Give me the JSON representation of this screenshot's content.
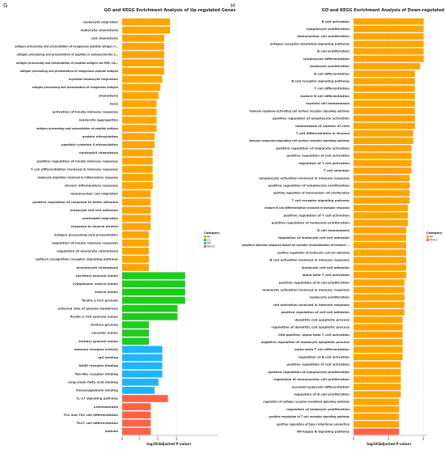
{
  "panels": [
    {
      "letter": "G"
    },
    {
      "letter": "H"
    }
  ],
  "chart_data": [
    {
      "type": "bar",
      "orientation": "horizontal",
      "title": "GO and KEGG Enrichment Analysis of Up-regulated Genes",
      "xlabel": "-log10(Adjusted P-value)",
      "xlim": [
        0,
        5
      ],
      "xticks": [
        "0",
        "1",
        "2",
        "3"
      ],
      "legend": {
        "title": "Category",
        "position": "right",
        "entries": [
          "BP",
          "CC",
          "MF",
          "KEGG"
        ]
      },
      "colors": {
        "BP": "#FFA500",
        "CC": "#1ECC1E",
        "MF": "#1EB4FF",
        "KEGG": "#FF6347"
      },
      "categories": [
        "leukocyte migration",
        "leukocyte chemotaxis",
        "cell chemotaxis",
        "antigen processing and presentation of exogenous peptide antigen via MHC class II",
        "antigen processing and presentation of peptide or polysaccharide antigen via MHC class II",
        "antigen processing and presentation of peptide antigen via MHC class II",
        "antigen processing and presentation of exogenous peptide antigen",
        "myeloid leukocyte migration",
        "antigen processing and presentation of exogenous antigen",
        "chemotaxis",
        "taxis",
        "activation of innate immune response",
        "leukocyte aggregation",
        "antigen processing and presentation of peptide antigen",
        "protein nitrosylation",
        "peptidyl-cysteine S-nitrosylation",
        "neutrophil chemotaxis",
        "positive regulation of innate immune response",
        "T cell differentiation involved in immune response",
        "leukocyte migration involved in inflammatory response",
        "chronic inflammatory response",
        "mononuclear cell migration",
        "positive regulation of response to biotic stimulus",
        "leukocyte cell-cell adhesion",
        "neutrophil migration",
        "response to muscle stretch",
        "antigen processing and presentation",
        "regulation of innate immune response",
        "regulation of monocyte chemotaxis",
        "pattern recognition receptor signaling pathway",
        "granulocyte chemotaxis",
        "secretory granule lumen",
        "cytoplasmic vesicle lumen",
        "vesicle lumen",
        "ficolin-1-rich granule",
        "external side of plasma membrane",
        "ficolin-1-rich granule lumen",
        "tertiary granule",
        "vacuolar lumen",
        "tertiary granule lumen",
        "immune receptor activity",
        "IgG binding",
        "RAGE receptor binding",
        "Toll-like receptor binding",
        "long-chain fatty acid binding",
        "immunoglobulin binding",
        "IL-17 signaling pathway",
        "Leishmaniasis",
        "Th1 and Th2 cell differentiation",
        "Th17 cell differentiation",
        "Asthma"
      ],
      "groups": [
        "BP",
        "BP",
        "BP",
        "BP",
        "BP",
        "BP",
        "BP",
        "BP",
        "BP",
        "BP",
        "BP",
        "BP",
        "BP",
        "BP",
        "BP",
        "BP",
        "BP",
        "BP",
        "BP",
        "BP",
        "BP",
        "BP",
        "BP",
        "BP",
        "BP",
        "BP",
        "BP",
        "BP",
        "BP",
        "BP",
        "BP",
        "CC",
        "CC",
        "CC",
        "CC",
        "CC",
        "CC",
        "CC",
        "CC",
        "CC",
        "MF",
        "MF",
        "MF",
        "MF",
        "MF",
        "MF",
        "KEGG",
        "KEGG",
        "KEGG",
        "KEGG",
        "KEGG"
      ],
      "values": [
        2.5,
        2.5,
        2.2,
        2.2,
        2.2,
        2.2,
        2.2,
        2.1,
        2.0,
        1.9,
        1.8,
        1.8,
        1.8,
        1.8,
        1.7,
        1.7,
        1.6,
        1.6,
        1.6,
        1.6,
        1.6,
        1.5,
        1.5,
        1.5,
        1.5,
        1.5,
        1.4,
        1.4,
        1.4,
        1.4,
        1.4,
        3.3,
        3.3,
        3.3,
        3.3,
        2.9,
        2.9,
        1.4,
        1.4,
        1.4,
        2.1,
        2.1,
        2.1,
        2.1,
        1.9,
        1.7,
        2.4,
        1.5,
        1.5,
        1.5,
        1.5
      ]
    },
    {
      "type": "bar",
      "orientation": "horizontal",
      "title": "GO and KEGG Enrichment Analysis of Down-regulated Genes",
      "xlabel": "-log10(Adjusted P-value)",
      "xlim": [
        0,
        4.2
      ],
      "xticks": [
        "0",
        "2",
        "4"
      ],
      "legend": {
        "title": "Category",
        "position": "right",
        "entries": [
          "BP",
          "KEGG"
        ]
      },
      "colors": {
        "BP": "#FFA500",
        "KEGG": "#FF6347"
      },
      "categories": [
        "B cell activation",
        "lymphocyte proliferation",
        "mononuclear cell proliferation",
        "antigen receptor-mediated signaling pathway",
        "B cell proliferation",
        "lymphocyte differentiation",
        "leukocyte proliferation",
        "B cell differentiation",
        "B cell receptor signaling pathway",
        "T cell differentiation",
        "mature B cell differentiation",
        "myeloid cell homeostasis",
        "immune response-activating cell surface receptor signaling pathway",
        "positive regulation of lymphocyte activation",
        "homeostasis of number of cells",
        "T cell differentiation in thymus",
        "immune response-regulating cell surface receptor signaling pathway",
        "positive regulation of leukocyte activation",
        "positive regulation of cell activation",
        "regulation of T cell activation",
        "T cell selection",
        "lymphocyte activation involved in immune response",
        "positive regulation of lymphocyte proliferation",
        "positive regulation of mononuclear cell proliferation",
        "T cell receptor signaling pathway",
        "mature B cell differentiation involved in immune response",
        "positive regulation of T cell activation",
        "positive regulation of leukocyte proliferation",
        "B cell homeostasis",
        "regulation of leukocyte cell-cell adhesion",
        "adaptive immune response based on somatic recombination of immune receptors built from immunoglobulin superfamily domains",
        "positive regulation of leukocyte cell-cell adhesion",
        "B cell activation involved in immune response",
        "leukocyte cell-cell adhesion",
        "alpha-beta T cell activation",
        "positive regulation of B cell proliferation",
        "leukocyte activation involved in immune response",
        "leukocyte proliferation",
        "cell activation involved in immune response",
        "positive regulation of cell-cell adhesion",
        "dendritic cell apoptotic process",
        "regulation of dendritic cell apoptotic process",
        "CD4-positive, alpha-beta T cell activation",
        "negative regulation of leukocyte apoptotic process",
        "alpha-beta T cell differentiation",
        "regulation of B cell activation",
        "positive regulation of cell activation",
        "positive regulation of lymphocyte proliferation",
        "regulation of mononuclear cell proliferation",
        "myeloid leukocyte differentiation",
        "regulation of B cell proliferation",
        "regulation of antigen receptor-mediated signaling pathway",
        "regulation of leukocyte proliferation",
        "positive regulation of T cell receptor signaling pathway",
        "positive regulation of type I interferon production",
        "NF-kappa B signaling pathway"
      ],
      "groups": [
        "BP",
        "BP",
        "BP",
        "BP",
        "BP",
        "BP",
        "BP",
        "BP",
        "BP",
        "BP",
        "BP",
        "BP",
        "BP",
        "BP",
        "BP",
        "BP",
        "BP",
        "BP",
        "BP",
        "BP",
        "BP",
        "BP",
        "BP",
        "BP",
        "BP",
        "BP",
        "BP",
        "BP",
        "BP",
        "BP",
        "BP",
        "BP",
        "BP",
        "BP",
        "BP",
        "BP",
        "BP",
        "BP",
        "BP",
        "BP",
        "BP",
        "BP",
        "BP",
        "BP",
        "BP",
        "BP",
        "BP",
        "BP",
        "BP",
        "BP",
        "BP",
        "BP",
        "BP",
        "BP",
        "BP",
        "KEGG"
      ],
      "values": [
        4.0,
        4.0,
        4.0,
        4.0,
        4.0,
        4.0,
        3.8,
        3.5,
        3.5,
        3.5,
        3.5,
        3.5,
        3.5,
        3.5,
        3.5,
        3.4,
        3.4,
        3.3,
        3.3,
        3.3,
        3.3,
        3.2,
        3.2,
        3.2,
        3.2,
        3.1,
        3.1,
        3.1,
        3.0,
        3.0,
        3.0,
        3.0,
        3.0,
        3.0,
        3.0,
        2.9,
        2.9,
        2.9,
        2.9,
        2.9,
        2.8,
        2.8,
        2.8,
        2.8,
        2.8,
        2.8,
        2.7,
        2.7,
        2.7,
        2.7,
        2.7,
        2.6,
        2.6,
        2.6,
        2.6,
        2.6
      ]
    }
  ]
}
